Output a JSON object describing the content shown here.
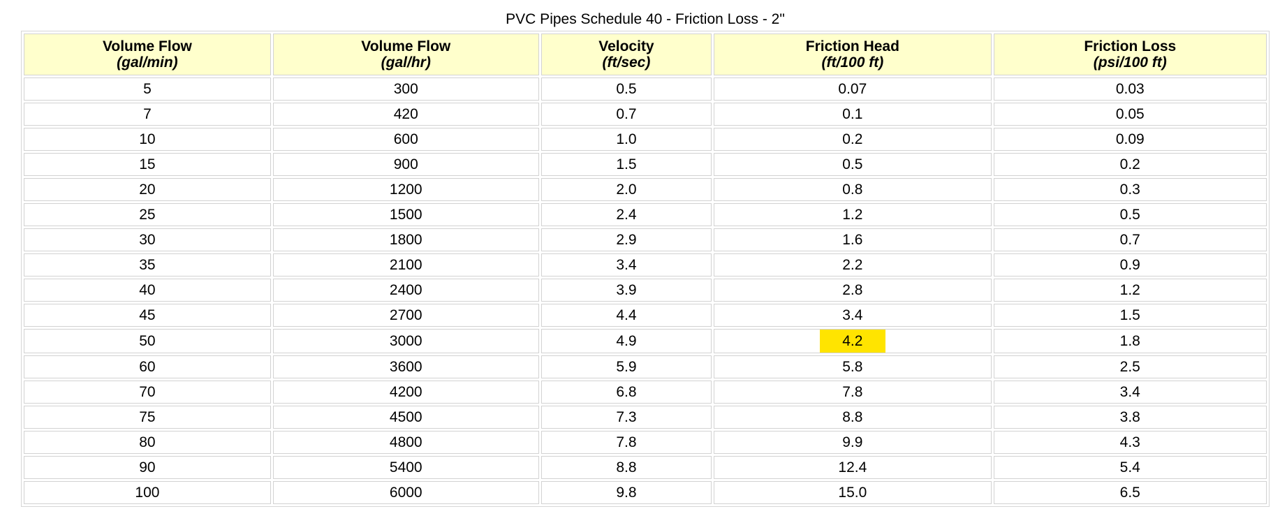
{
  "table": {
    "caption": "PVC Pipes Schedule 40 - Friction Loss - 2\"",
    "highlight_color": "#ffe400",
    "header_color": "#ffffcc",
    "columns": [
      {
        "label": "Volume Flow",
        "unit": "(gal/min)"
      },
      {
        "label": "Volume Flow",
        "unit": "(gal/hr)"
      },
      {
        "label": "Velocity",
        "unit": "(ft/sec)"
      },
      {
        "label": "Friction Head",
        "unit": "(ft/100 ft)"
      },
      {
        "label": "Friction Loss",
        "unit": "(psi/100 ft)"
      }
    ],
    "rows": [
      [
        "5",
        "300",
        "0.5",
        "0.07",
        "0.03"
      ],
      [
        "7",
        "420",
        "0.7",
        "0.1",
        "0.05"
      ],
      [
        "10",
        "600",
        "1.0",
        "0.2",
        "0.09"
      ],
      [
        "15",
        "900",
        "1.5",
        "0.5",
        "0.2"
      ],
      [
        "20",
        "1200",
        "2.0",
        "0.8",
        "0.3"
      ],
      [
        "25",
        "1500",
        "2.4",
        "1.2",
        "0.5"
      ],
      [
        "30",
        "1800",
        "2.9",
        "1.6",
        "0.7"
      ],
      [
        "35",
        "2100",
        "3.4",
        "2.2",
        "0.9"
      ],
      [
        "40",
        "2400",
        "3.9",
        "2.8",
        "1.2"
      ],
      [
        "45",
        "2700",
        "4.4",
        "3.4",
        "1.5"
      ],
      [
        "50",
        "3000",
        "4.9",
        "4.2",
        "1.8"
      ],
      [
        "60",
        "3600",
        "5.9",
        "5.8",
        "2.5"
      ],
      [
        "70",
        "4200",
        "6.8",
        "7.8",
        "3.4"
      ],
      [
        "75",
        "4500",
        "7.3",
        "8.8",
        "3.8"
      ],
      [
        "80",
        "4800",
        "7.8",
        "9.9",
        "4.3"
      ],
      [
        "90",
        "5400",
        "8.8",
        "12.4",
        "5.4"
      ],
      [
        "100",
        "6000",
        "9.8",
        "15.0",
        "6.5"
      ]
    ],
    "highlighted_cell": {
      "row": 10,
      "col": 3
    }
  }
}
